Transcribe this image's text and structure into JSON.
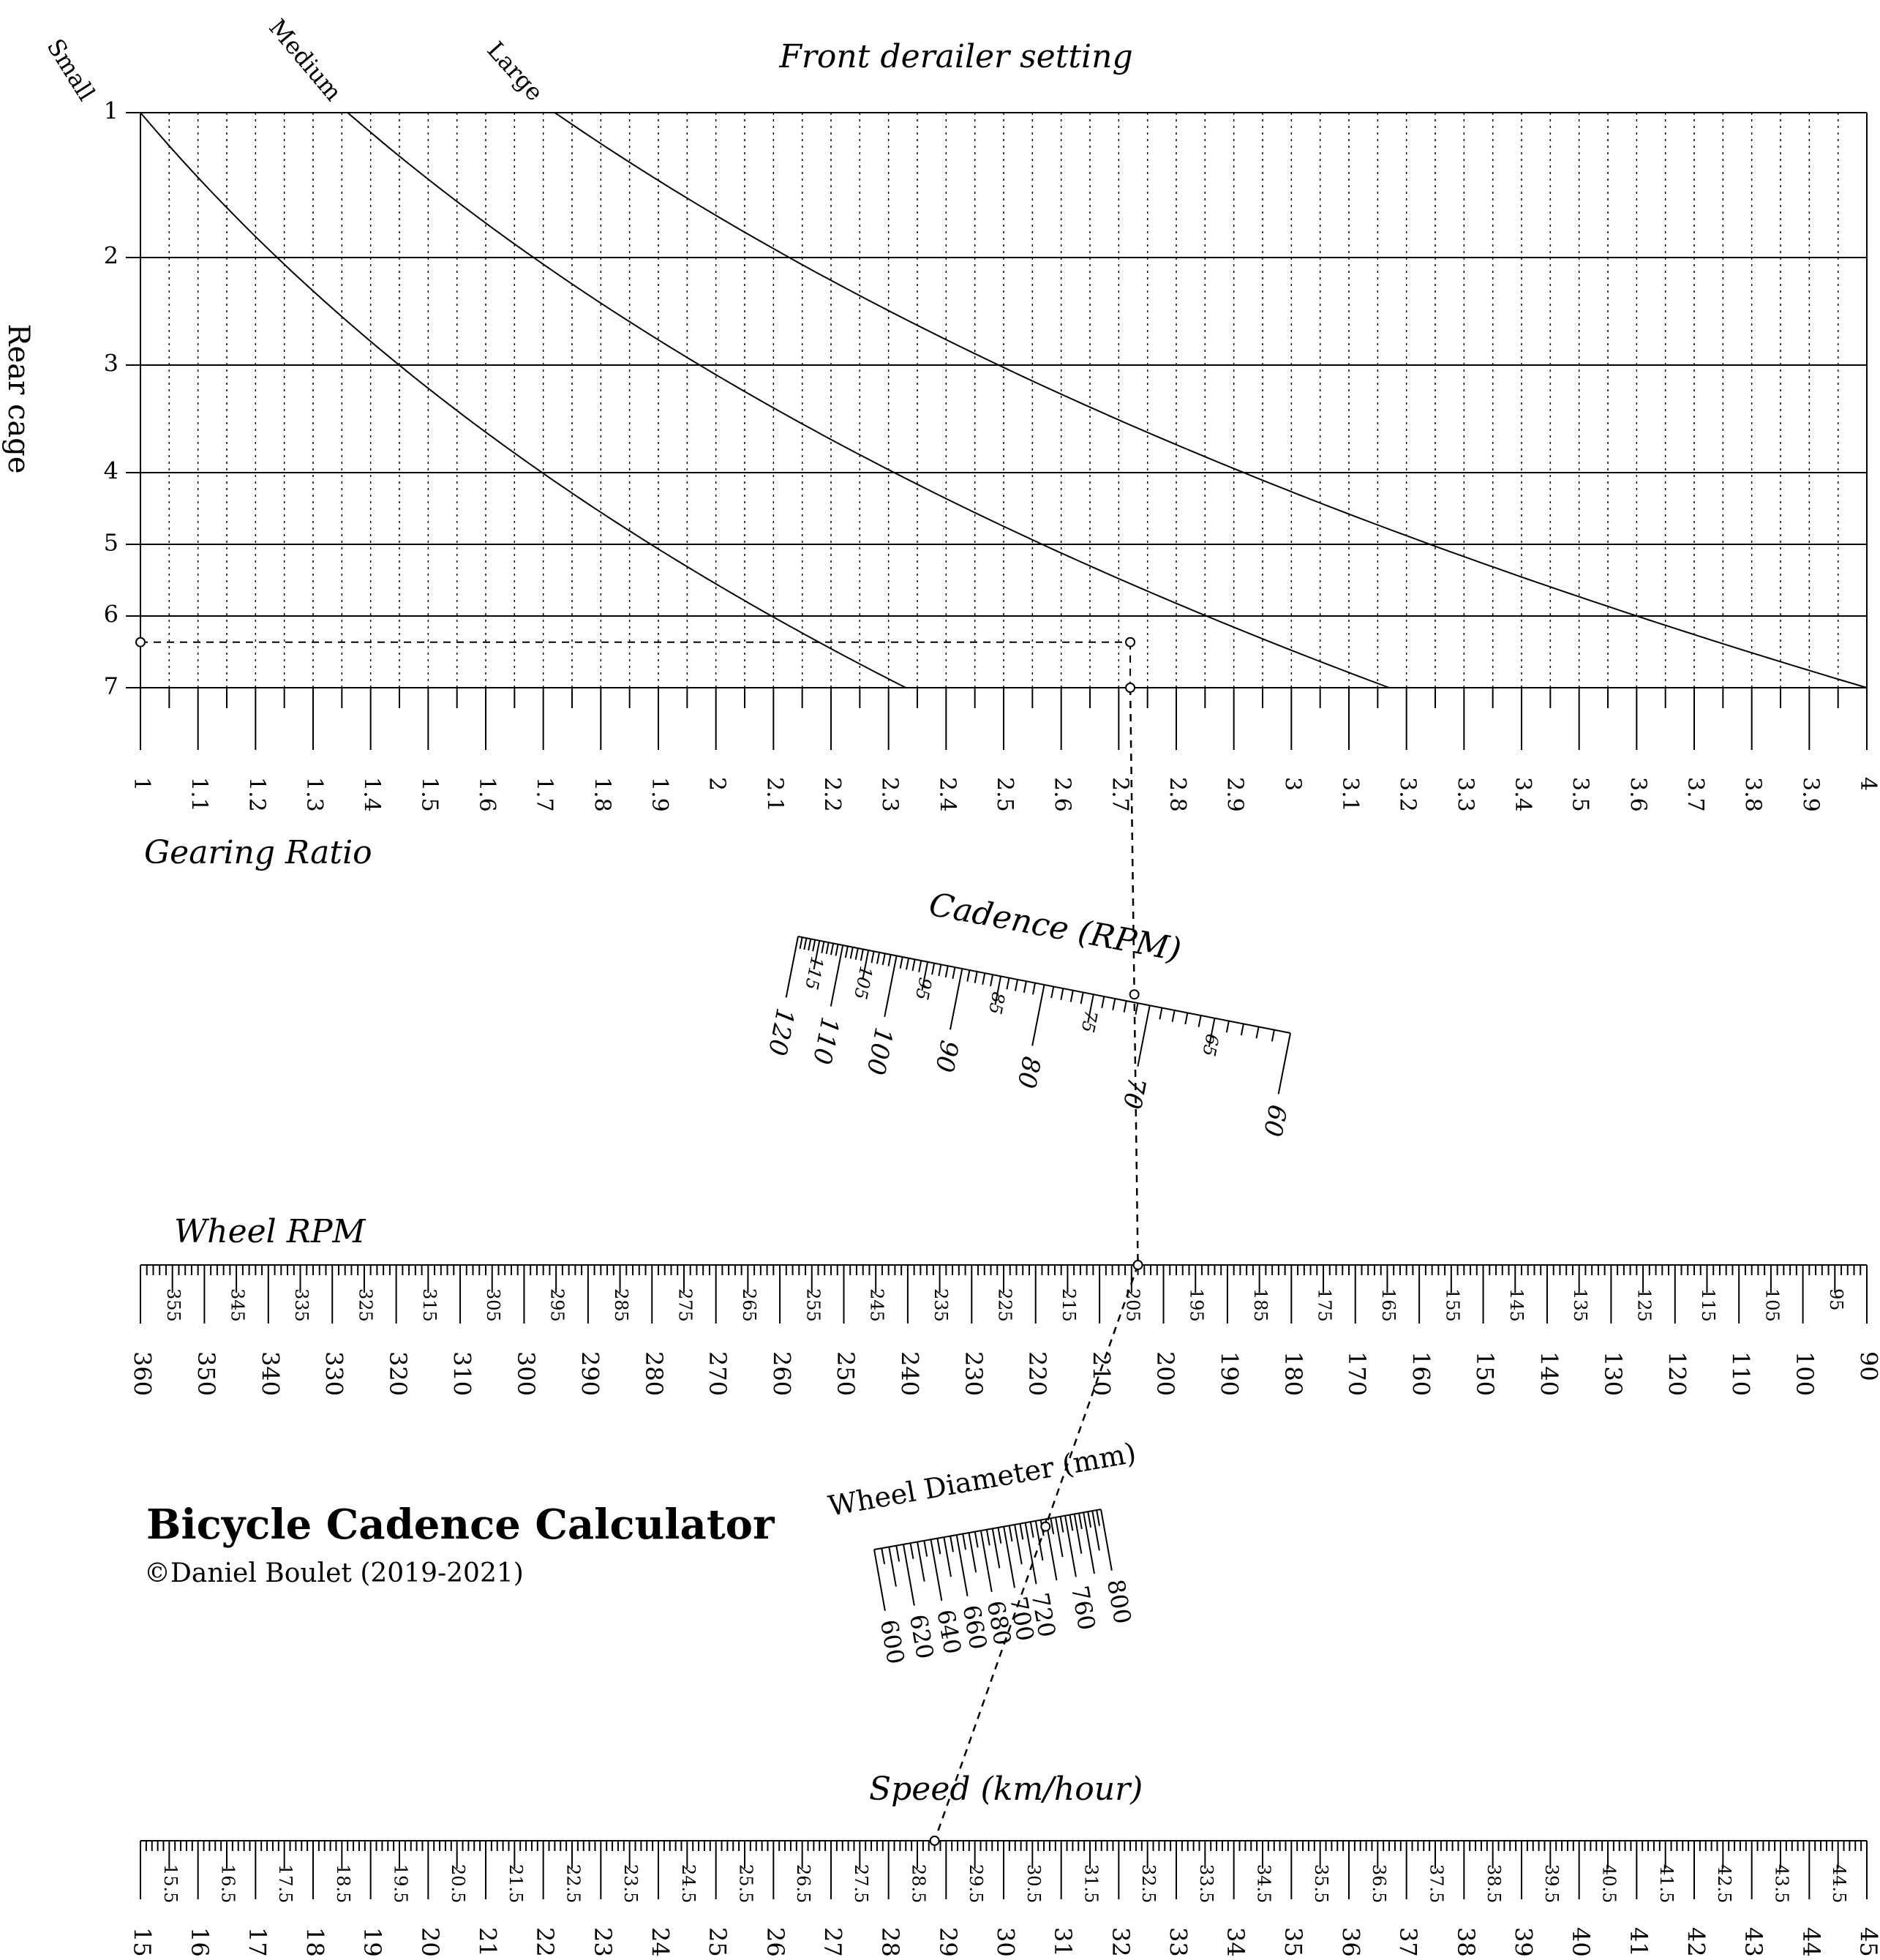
{
  "gear_chart": {
    "title": "Front derailer setting",
    "rear_axis_label": "Rear cage",
    "front_labels": [
      "Small",
      "Medium",
      "Large"
    ],
    "rear_ticks": [
      "1",
      "2",
      "3",
      "4",
      "5",
      "6",
      "7"
    ],
    "ratio_axis_label": "Gearing Ratio",
    "ratio_range": [
      1,
      4
    ],
    "ratio_ticks": [
      "1",
      "1.1",
      "1.2",
      "1.3",
      "1.4",
      "1.5",
      "1.6",
      "1.7",
      "1.8",
      "1.9",
      "2",
      "2.1",
      "2.2",
      "2.3",
      "2.4",
      "2.5",
      "2.6",
      "2.7",
      "2.8",
      "2.9",
      "3",
      "3.1",
      "3.2",
      "3.3",
      "3.4",
      "3.5",
      "3.6",
      "3.7",
      "3.8",
      "3.9",
      "4"
    ],
    "curves": [
      {
        "front": "Small",
        "ratio_at_rear_1": 1.0,
        "ratio_at_rear_7": 2.33
      },
      {
        "front": "Medium",
        "ratio_at_rear_1": 1.36,
        "ratio_at_rear_7": 3.17
      },
      {
        "front": "Large",
        "ratio_at_rear_1": 1.72,
        "ratio_at_rear_7": 4.0
      }
    ]
  },
  "cadence_scale": {
    "label": "Cadence (RPM)",
    "major_ticks": [
      "120",
      "110",
      "100",
      "90",
      "80",
      "70",
      "60"
    ],
    "minor_ticks": [
      "115",
      "105",
      "95",
      "85",
      "75",
      "65"
    ]
  },
  "wheel_rpm_scale": {
    "label": "Wheel RPM",
    "major_ticks": [
      "360",
      "350",
      "340",
      "330",
      "320",
      "310",
      "300",
      "290",
      "280",
      "270",
      "260",
      "250",
      "240",
      "230",
      "220",
      "210",
      "200",
      "190",
      "180",
      "170",
      "160",
      "150",
      "140",
      "130",
      "120",
      "110",
      "100",
      "90"
    ],
    "minor_ticks": [
      "355",
      "345",
      "335",
      "325",
      "315",
      "305",
      "295",
      "285",
      "275",
      "265",
      "255",
      "245",
      "235",
      "225",
      "215",
      "205",
      "195",
      "185",
      "175",
      "165",
      "155",
      "145",
      "135",
      "125",
      "115",
      "105",
      "95"
    ]
  },
  "wheel_diameter_scale": {
    "label": "Wheel Diameter (mm)",
    "ticks": [
      "600",
      "620",
      "640",
      "660",
      "680",
      "700",
      "720",
      "760",
      "800"
    ]
  },
  "speed_scale": {
    "label": "Speed (km/hour)",
    "major_ticks": [
      "15",
      "16",
      "17",
      "18",
      "19",
      "20",
      "21",
      "22",
      "23",
      "24",
      "25",
      "26",
      "27",
      "28",
      "29",
      "30",
      "31",
      "32",
      "33",
      "34",
      "35",
      "36",
      "37",
      "38",
      "39",
      "40",
      "41",
      "42",
      "43",
      "44",
      "45"
    ],
    "minor_ticks": [
      "15.5",
      "16.5",
      "17.5",
      "18.5",
      "19.5",
      "20.5",
      "21.5",
      "22.5",
      "23.5",
      "24.5",
      "25.5",
      "26.5",
      "27.5",
      "28.5",
      "29.5",
      "30.5",
      "31.5",
      "32.5",
      "33.5",
      "34.5",
      "35.5",
      "36.5",
      "37.5",
      "38.5",
      "39.5",
      "40.5",
      "41.5",
      "42.5",
      "43.5",
      "44.5"
    ]
  },
  "example": {
    "rear_cage": 6,
    "front": "Medium",
    "gearing_ratio": 2.72,
    "cadence_rpm": 75,
    "wheel_rpm": 204,
    "wheel_diameter_mm": 700,
    "speed_kmh": 28.8
  },
  "title_block": {
    "title": "Bicycle Cadence Calculator",
    "copyright": "©Daniel Boulet (2019-2021)"
  }
}
